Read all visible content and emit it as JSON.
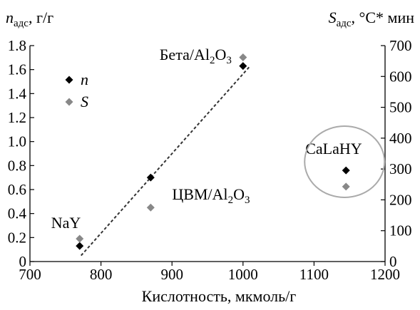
{
  "chart_data": {
    "type": "scatter",
    "xlabel": "Кислотность, мкмоль/г",
    "ylabel_left": {
      "symbol": "n",
      "sub": "адс",
      "unit": ", г/г"
    },
    "ylabel_right": {
      "symbol": "S",
      "sub": "адс",
      "unit": ", °С* мин"
    },
    "xlim": [
      700,
      1200
    ],
    "ylim_left": [
      0,
      1.8
    ],
    "ylim_right": [
      0,
      700
    ],
    "x_ticks": [
      700,
      800,
      900,
      1000,
      1100,
      1200
    ],
    "y_left_ticks": [
      "0",
      "0.2",
      "0.4",
      "0.6",
      "0.8",
      "1.0",
      "1.2",
      "1.4",
      "1.6",
      "1.8"
    ],
    "y_right_ticks": [
      0,
      100,
      200,
      300,
      400,
      500,
      600,
      700
    ],
    "series": [
      {
        "name": "n",
        "axis": "left",
        "color": "#000000",
        "points": [
          {
            "x": 770,
            "y": 0.13
          },
          {
            "x": 870,
            "y": 0.7
          },
          {
            "x": 1000,
            "y": 1.63
          },
          {
            "x": 1145,
            "y": 0.76
          }
        ]
      },
      {
        "name": "S",
        "axis": "right",
        "color": "#888888",
        "points": [
          {
            "x": 770,
            "y": 74
          },
          {
            "x": 870,
            "y": 175
          },
          {
            "x": 1000,
            "y": 662
          },
          {
            "x": 1145,
            "y": 243
          }
        ]
      }
    ],
    "trendline": {
      "axis": "left",
      "x": [
        772,
        1010
      ],
      "y": [
        0.05,
        1.63
      ]
    },
    "annotations": [
      {
        "text": "NaY",
        "x": 770
      },
      {
        "text": "ЦВМ/Al",
        "sub": "2",
        "tail": "O",
        "sub2": "3",
        "x": 870
      },
      {
        "text": "Бета/Al",
        "sub": "2",
        "tail": "O",
        "sub2": "3",
        "x": 1000
      },
      {
        "text": "CaLaHY",
        "x": 1145,
        "circled": true
      }
    ],
    "legend": {
      "placement": "top-left",
      "entries": [
        "n",
        "S"
      ]
    },
    "grid": false
  }
}
